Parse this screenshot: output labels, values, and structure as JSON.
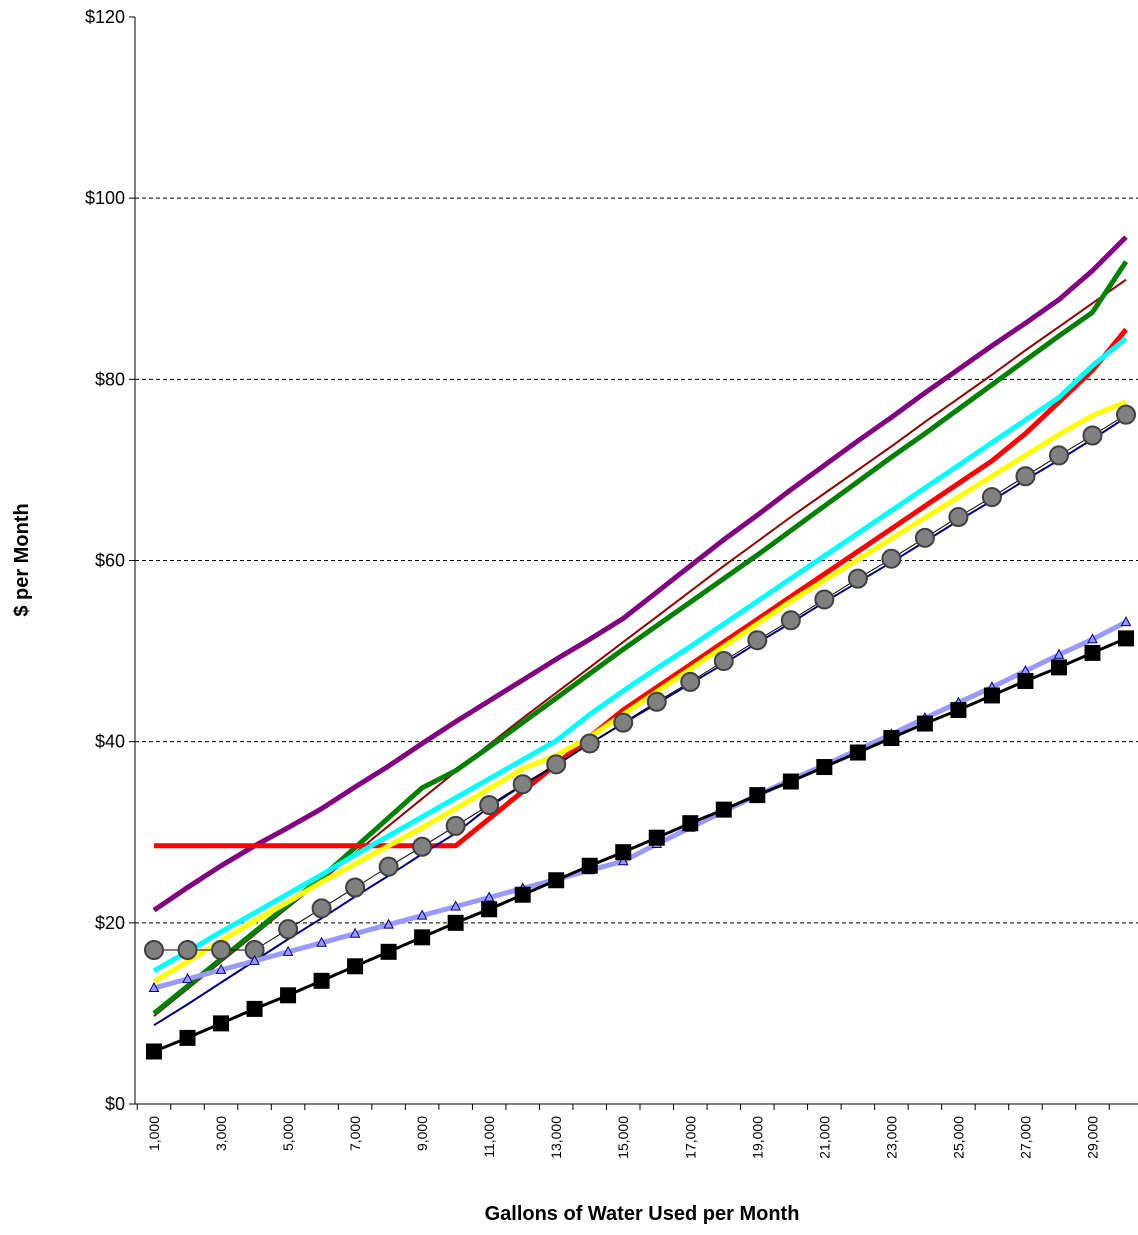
{
  "chart_data": {
    "type": "line",
    "title": "",
    "xlabel": "Gallons of Water Used per Month",
    "ylabel": "$ per Month",
    "ylim": [
      0,
      120
    ],
    "grid": true,
    "x": [
      1000,
      2000,
      3000,
      4000,
      5000,
      6000,
      7000,
      8000,
      9000,
      10000,
      11000,
      12000,
      13000,
      14000,
      15000,
      16000,
      17000,
      18000,
      19000,
      20000,
      21000,
      22000,
      23000,
      24000,
      25000,
      26000,
      27000,
      28000,
      29000,
      30000
    ],
    "y_tick_labels": [
      "$0",
      "$20",
      "$40",
      "$60",
      "$80",
      "$100",
      "$120"
    ],
    "x_tick_labels": [
      "1,000",
      "3,000",
      "5,000",
      "7,000",
      "9,000",
      "11,000",
      "13,000",
      "15,000",
      "17,000",
      "19,000",
      "21,000",
      "23,000",
      "25,000",
      "27,000",
      "29,000"
    ],
    "series": [
      {
        "color": "#800080",
        "width": 5,
        "marker": "none",
        "values": [
          21.4,
          23.9,
          26.3,
          28.5,
          30.5,
          32.6,
          35.0,
          37.3,
          39.8,
          42.2,
          44.5,
          46.8,
          49.1,
          51.3,
          53.6,
          56.5,
          59.4,
          62.3,
          65.0,
          67.8,
          70.5,
          73.2,
          75.8,
          78.5,
          81.1,
          83.7,
          86.2,
          88.8,
          92.0,
          95.7
        ]
      },
      {
        "color": "#8B0000",
        "width": 2,
        "marker": "none",
        "values": [
          9.7,
          12.7,
          15.7,
          18.7,
          21.7,
          24.7,
          27.7,
          30.7,
          33.7,
          36.7,
          39.7,
          42.6,
          45.4,
          48.2,
          51.0,
          53.8,
          56.6,
          59.4,
          62.1,
          64.8,
          67.4,
          70.0,
          72.6,
          75.3,
          77.9,
          80.5,
          83.2,
          85.8,
          88.4,
          91.0
        ]
      },
      {
        "color": "#008000",
        "width": 5,
        "marker": "none",
        "values": [
          10.0,
          13.0,
          16.0,
          19.0,
          22.0,
          25.0,
          28.3,
          31.6,
          34.9,
          36.8,
          39.4,
          42.1,
          44.8,
          47.5,
          50.2,
          52.8,
          55.4,
          58.0,
          60.6,
          63.3,
          66.0,
          68.7,
          71.4,
          74.0,
          76.7,
          79.4,
          82.1,
          84.8,
          87.4,
          93.0
        ]
      },
      {
        "color": "#FF0000",
        "width": 5,
        "marker": "none",
        "values": [
          28.5,
          28.5,
          28.5,
          28.5,
          28.5,
          28.5,
          28.5,
          28.5,
          28.5,
          28.5,
          31.5,
          34.5,
          37.5,
          40.5,
          43.5,
          46.0,
          48.5,
          51.0,
          53.5,
          56.0,
          58.5,
          61.0,
          63.5,
          66.0,
          68.5,
          71.0,
          74.0,
          77.5,
          81.0,
          85.5
        ]
      },
      {
        "color": "#00FFFF",
        "width": 5,
        "marker": "none",
        "values": [
          14.7,
          16.8,
          19.0,
          21.1,
          23.2,
          25.3,
          27.5,
          29.6,
          31.7,
          33.8,
          35.9,
          38.0,
          40.1,
          43.0,
          45.6,
          48.1,
          50.5,
          53.0,
          55.5,
          58.0,
          60.5,
          63.0,
          65.5,
          68.0,
          70.5,
          73.0,
          75.5,
          78.0,
          81.5,
          84.5
        ]
      },
      {
        "color": "#FFFF00",
        "width": 5,
        "marker": "none",
        "values": [
          13.5,
          15.7,
          18.0,
          20.2,
          22.3,
          24.5,
          26.5,
          28.5,
          30.5,
          32.6,
          34.8,
          37.0,
          38.5,
          40.5,
          43.0,
          45.5,
          48.0,
          50.5,
          53.0,
          55.5,
          57.8,
          60.1,
          62.4,
          64.7,
          67.0,
          69.3,
          71.6,
          73.9,
          76.0,
          77.5
        ]
      },
      {
        "color": "#000080",
        "width": 2,
        "marker": "none",
        "values": [
          8.7,
          11.0,
          13.4,
          15.8,
          18.2,
          20.5,
          22.9,
          25.2,
          27.6,
          29.9,
          32.8,
          35.2,
          37.4,
          39.8,
          42.0,
          44.2,
          46.4,
          48.6,
          50.9,
          53.1,
          55.4,
          57.6,
          59.8,
          62.1,
          64.4,
          66.6,
          68.9,
          71.1,
          73.4,
          75.8
        ]
      },
      {
        "color": "#000000",
        "width": 1,
        "marker": "circle",
        "markerFill": "#808080",
        "markerStroke": "#404040",
        "values": [
          17.0,
          17.0,
          17.0,
          17.0,
          19.3,
          21.6,
          23.9,
          26.2,
          28.4,
          30.7,
          33.0,
          35.3,
          37.5,
          39.8,
          42.1,
          44.4,
          46.6,
          48.9,
          51.2,
          53.4,
          55.7,
          58.0,
          60.2,
          62.5,
          64.8,
          67.0,
          69.3,
          71.6,
          73.8,
          76.1
        ]
      },
      {
        "color": "#9999FF",
        "width": 5,
        "marker": "triangle",
        "markerFill": "#9999FF",
        "markerStroke": "#000080",
        "values": [
          12.8,
          13.8,
          14.8,
          15.8,
          16.8,
          17.8,
          18.8,
          19.8,
          20.8,
          21.8,
          22.8,
          23.8,
          24.8,
          25.8,
          26.8,
          28.7,
          30.5,
          32.3,
          34.1,
          35.8,
          37.4,
          39.1,
          40.8,
          42.6,
          44.3,
          46.0,
          47.8,
          49.6,
          51.3,
          53.2
        ]
      },
      {
        "color": "#000000",
        "width": 3,
        "marker": "square",
        "markerFill": "#000000",
        "markerStroke": "#000000",
        "values": [
          5.8,
          7.3,
          8.9,
          10.5,
          12.0,
          13.6,
          15.2,
          16.8,
          18.4,
          20.0,
          21.5,
          23.1,
          24.7,
          26.3,
          27.8,
          29.4,
          31.0,
          32.5,
          34.1,
          35.6,
          37.2,
          38.8,
          40.4,
          42.0,
          43.5,
          45.1,
          46.7,
          48.2,
          49.8,
          51.4
        ]
      }
    ]
  }
}
